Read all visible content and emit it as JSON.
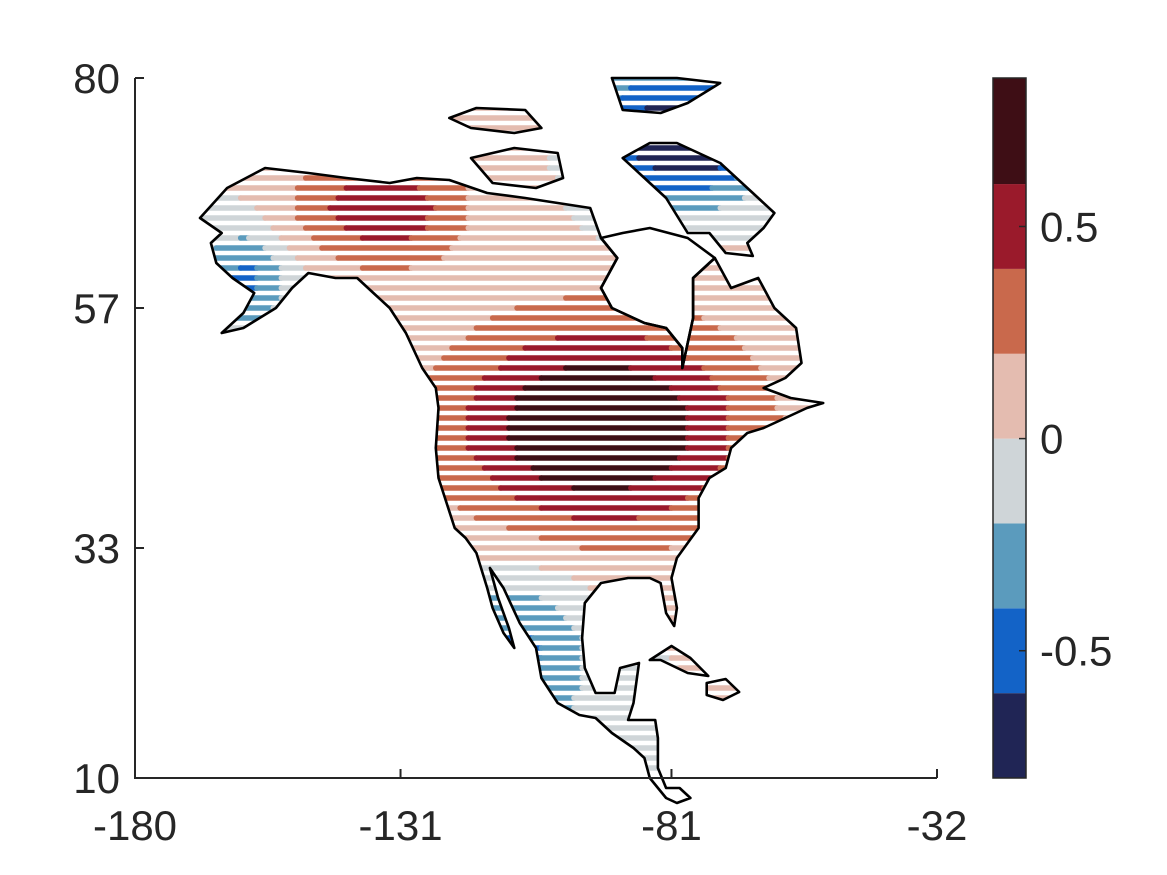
{
  "chart_data": {
    "type": "heatmap",
    "title": "",
    "xlabel": "",
    "ylabel": "",
    "xlim": [
      -180,
      -32
    ],
    "ylim": [
      10,
      80
    ],
    "x_ticks": [
      "-180",
      "-131",
      "-81",
      "-32"
    ],
    "y_ticks": [
      "10",
      "33",
      "57",
      "80"
    ],
    "x_tick_values": [
      -180,
      -131,
      -81,
      -32
    ],
    "y_tick_values": [
      10,
      33,
      57,
      80
    ],
    "colorbar": {
      "range": [
        -0.8,
        0.85
      ],
      "ticks": [
        "-0.5",
        "0",
        "0.5"
      ],
      "tick_values": [
        -0.5,
        0,
        0.5
      ],
      "bins": [
        {
          "from": -0.8,
          "to": -0.6,
          "color": "#202555"
        },
        {
          "from": -0.6,
          "to": -0.4,
          "color": "#1363c7"
        },
        {
          "from": -0.4,
          "to": -0.2,
          "color": "#5b9bbd"
        },
        {
          "from": -0.2,
          "to": 0.0,
          "color": "#cfd5d8"
        },
        {
          "from": 0.0,
          "to": 0.2,
          "color": "#e4bcb0"
        },
        {
          "from": 0.2,
          "to": 0.4,
          "color": "#c9694c"
        },
        {
          "from": 0.4,
          "to": 0.6,
          "color": "#9a1a2b"
        },
        {
          "from": 0.6,
          "to": 0.85,
          "color": "#3e0e15"
        }
      ]
    },
    "field_centers": [
      {
        "lon": -95,
        "lat": 45,
        "value": 0.85,
        "spread_lon": 28,
        "spread_lat": 11
      },
      {
        "lon": -135,
        "lat": 67,
        "value": 0.55,
        "spread_lon": 16,
        "spread_lat": 6
      },
      {
        "lon": -110,
        "lat": 22,
        "value": -0.45,
        "spread_lon": 14,
        "spread_lat": 9
      },
      {
        "lon": -160,
        "lat": 60,
        "value": -0.45,
        "spread_lon": 8,
        "spread_lat": 5
      },
      {
        "lon": -75,
        "lat": 74,
        "value": -0.8,
        "spread_lon": 10,
        "spread_lat": 6
      },
      {
        "lon": -88,
        "lat": 74,
        "value": -0.5,
        "spread_lon": 8,
        "spread_lat": 8
      }
    ],
    "land_outline_lonlat": [
      [
        -168,
        66
      ],
      [
        -163,
        69
      ],
      [
        -156,
        71
      ],
      [
        -148,
        70.5
      ],
      [
        -141,
        70
      ],
      [
        -133,
        69.5
      ],
      [
        -128,
        70
      ],
      [
        -122,
        69.8
      ],
      [
        -115,
        68.5
      ],
      [
        -108,
        68
      ],
      [
        -102,
        67.5
      ],
      [
        -96,
        67
      ],
      [
        -94,
        64
      ],
      [
        -91,
        62
      ],
      [
        -94,
        59
      ],
      [
        -92,
        57
      ],
      [
        -86,
        55.5
      ],
      [
        -82,
        55
      ],
      [
        -79,
        53
      ],
      [
        -79,
        51
      ],
      [
        -77,
        56
      ],
      [
        -77,
        60
      ],
      [
        -73,
        62
      ],
      [
        -70,
        59
      ],
      [
        -65,
        60
      ],
      [
        -62,
        57
      ],
      [
        -58,
        55
      ],
      [
        -57,
        51.5
      ],
      [
        -60,
        50
      ],
      [
        -64,
        49
      ],
      [
        -59,
        48
      ],
      [
        -53,
        47.5
      ],
      [
        -56,
        47
      ],
      [
        -60,
        46
      ],
      [
        -64,
        45
      ],
      [
        -67,
        44.5
      ],
      [
        -70,
        43
      ],
      [
        -71,
        41
      ],
      [
        -74,
        40
      ],
      [
        -76,
        38
      ],
      [
        -76,
        35
      ],
      [
        -78,
        33.5
      ],
      [
        -80,
        32
      ],
      [
        -81,
        30
      ],
      [
        -80,
        27
      ],
      [
        -80.5,
        25.2
      ],
      [
        -82,
        26.5
      ],
      [
        -83,
        29.5
      ],
      [
        -85,
        30
      ],
      [
        -89,
        30
      ],
      [
        -94,
        29.5
      ],
      [
        -97,
        27.5
      ],
      [
        -97.5,
        24
      ],
      [
        -97,
        21
      ],
      [
        -95,
        18.5
      ],
      [
        -91.5,
        18.5
      ],
      [
        -90.5,
        21
      ],
      [
        -87,
        21.5
      ],
      [
        -88,
        17.5
      ],
      [
        -89,
        15.8
      ],
      [
        -84,
        15.8
      ],
      [
        -83.5,
        14
      ],
      [
        -83.5,
        11
      ],
      [
        -82,
        9
      ],
      [
        -79.5,
        9
      ],
      [
        -77.5,
        8
      ],
      [
        -80,
        7.5
      ],
      [
        -82,
        8
      ],
      [
        -85,
        10
      ],
      [
        -86,
        12
      ],
      [
        -88,
        13
      ],
      [
        -92,
        14.5
      ],
      [
        -95,
        16
      ],
      [
        -98,
        16.3
      ],
      [
        -102,
        17.5
      ],
      [
        -105,
        20
      ],
      [
        -106,
        23
      ],
      [
        -109,
        25.5
      ],
      [
        -112,
        29
      ],
      [
        -114.5,
        31
      ],
      [
        -113,
        28
      ],
      [
        -111,
        25
      ],
      [
        -110,
        23
      ],
      [
        -112,
        24.5
      ],
      [
        -114,
        27
      ],
      [
        -115,
        29
      ],
      [
        -117,
        32.5
      ],
      [
        -119,
        34
      ],
      [
        -121,
        35
      ],
      [
        -122.5,
        37.5
      ],
      [
        -124,
        40
      ],
      [
        -124.5,
        43
      ],
      [
        -124,
        47
      ],
      [
        -124.5,
        49
      ],
      [
        -127,
        51
      ],
      [
        -130,
        54.5
      ],
      [
        -133,
        57
      ],
      [
        -136,
        58.5
      ],
      [
        -139,
        60
      ],
      [
        -143,
        60
      ],
      [
        -148,
        60.5
      ],
      [
        -151,
        59
      ],
      [
        -154,
        57
      ],
      [
        -157,
        56
      ],
      [
        -160,
        55
      ],
      [
        -164,
        54.5
      ],
      [
        -160,
        56.5
      ],
      [
        -158,
        58.5
      ],
      [
        -162,
        60
      ],
      [
        -165,
        61.5
      ],
      [
        -166,
        63.5
      ],
      [
        -164,
        64.5
      ],
      [
        -168,
        66
      ]
    ],
    "hudson_bay_lonlat": [
      [
        -94,
        64
      ],
      [
        -91,
        62
      ],
      [
        -94,
        59
      ],
      [
        -92,
        57
      ],
      [
        -86,
        55.5
      ],
      [
        -82,
        55
      ],
      [
        -79,
        53
      ],
      [
        -79,
        51
      ],
      [
        -77,
        56
      ],
      [
        -77,
        60
      ],
      [
        -73,
        62
      ],
      [
        -78,
        64
      ],
      [
        -85,
        65
      ],
      [
        -90,
        64.5
      ],
      [
        -94,
        64
      ]
    ],
    "baffin_lonlat": [
      [
        -90,
        72
      ],
      [
        -85,
        73.5
      ],
      [
        -80,
        73.5
      ],
      [
        -72,
        71.5
      ],
      [
        -66,
        68.5
      ],
      [
        -62,
        66.5
      ],
      [
        -64,
        65
      ],
      [
        -67,
        63.5
      ],
      [
        -66,
        62.2
      ],
      [
        -71,
        62.5
      ],
      [
        -74,
        64.5
      ],
      [
        -78,
        64.5
      ],
      [
        -82,
        68
      ],
      [
        -86,
        70
      ],
      [
        -90,
        72
      ]
    ],
    "ellesmere_lonlat": [
      [
        -92,
        80
      ],
      [
        -80,
        80
      ],
      [
        -72,
        79.5
      ],
      [
        -78,
        77.5
      ],
      [
        -83,
        76.5
      ],
      [
        -90,
        76.8
      ],
      [
        -92,
        80
      ]
    ],
    "arctic_islands_lonlat": [
      [
        -122,
        76
      ],
      [
        -117,
        77
      ],
      [
        -108,
        76.8
      ],
      [
        -105,
        75
      ],
      [
        -110,
        74.5
      ],
      [
        -118,
        75
      ],
      [
        -122,
        76
      ]
    ],
    "victoria_lonlat": [
      [
        -118,
        72
      ],
      [
        -110,
        73
      ],
      [
        -102,
        72.5
      ],
      [
        -101,
        70
      ],
      [
        -106,
        69
      ],
      [
        -114,
        69.5
      ],
      [
        -118,
        72
      ]
    ],
    "cuba_lonlat": [
      [
        -85,
        21.8
      ],
      [
        -81,
        23.2
      ],
      [
        -77.5,
        22
      ],
      [
        -74.2,
        20.2
      ],
      [
        -78,
        20.5
      ],
      [
        -83,
        21.8
      ],
      [
        -85,
        21.8
      ]
    ],
    "hispaniola_lonlat": [
      [
        -74.5,
        19.5
      ],
      [
        -71,
        19.9
      ],
      [
        -68.5,
        18.6
      ],
      [
        -71.5,
        17.8
      ],
      [
        -74.5,
        18.3
      ],
      [
        -74.5,
        19.5
      ]
    ]
  }
}
